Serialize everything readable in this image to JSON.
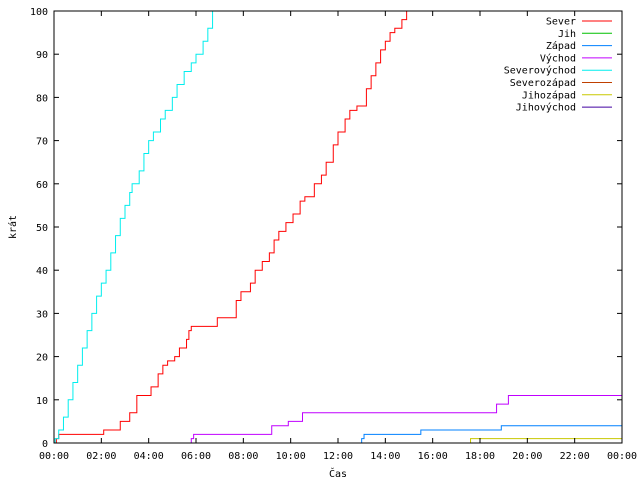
{
  "chart_data": {
    "type": "line",
    "title": "",
    "xlabel": "Čas",
    "ylabel": "krát",
    "x_unit": "hours of day",
    "xlim": [
      0,
      24
    ],
    "ylim": [
      0,
      100
    ],
    "x_ticks": [
      {
        "x": 0,
        "label": "00:00"
      },
      {
        "x": 2,
        "label": "02:00"
      },
      {
        "x": 4,
        "label": "04:00"
      },
      {
        "x": 6,
        "label": "06:00"
      },
      {
        "x": 8,
        "label": "08:00"
      },
      {
        "x": 10,
        "label": "10:00"
      },
      {
        "x": 12,
        "label": "12:00"
      },
      {
        "x": 14,
        "label": "14:00"
      },
      {
        "x": 16,
        "label": "16:00"
      },
      {
        "x": 18,
        "label": "18:00"
      },
      {
        "x": 20,
        "label": "20:00"
      },
      {
        "x": 22,
        "label": "22:00"
      },
      {
        "x": 24,
        "label": "00:00"
      }
    ],
    "y_ticks": [
      {
        "y": 0,
        "label": "0"
      },
      {
        "y": 10,
        "label": "10"
      },
      {
        "y": 20,
        "label": "20"
      },
      {
        "y": 30,
        "label": "30"
      },
      {
        "y": 40,
        "label": "40"
      },
      {
        "y": 50,
        "label": "50"
      },
      {
        "y": 60,
        "label": "60"
      },
      {
        "y": 70,
        "label": "70"
      },
      {
        "y": 80,
        "label": "80"
      },
      {
        "y": 90,
        "label": "90"
      },
      {
        "y": 100,
        "label": "100"
      }
    ],
    "grid": false,
    "legend_position": "top-right",
    "step": true,
    "series": [
      {
        "name": "Sever",
        "color": "#ff0000",
        "points": [
          [
            0.1,
            1
          ],
          [
            0.2,
            2
          ],
          [
            2.1,
            3
          ],
          [
            2.8,
            5
          ],
          [
            3.2,
            7
          ],
          [
            3.5,
            11
          ],
          [
            4.1,
            13
          ],
          [
            4.4,
            16
          ],
          [
            4.6,
            18
          ],
          [
            4.8,
            19
          ],
          [
            5.1,
            20
          ],
          [
            5.3,
            22
          ],
          [
            5.6,
            24
          ],
          [
            5.7,
            26
          ],
          [
            5.8,
            27
          ],
          [
            6.9,
            29
          ],
          [
            7.7,
            33
          ],
          [
            7.9,
            35
          ],
          [
            8.3,
            37
          ],
          [
            8.5,
            40
          ],
          [
            8.8,
            42
          ],
          [
            9.1,
            44
          ],
          [
            9.3,
            47
          ],
          [
            9.5,
            49
          ],
          [
            9.8,
            51
          ],
          [
            10.1,
            53
          ],
          [
            10.4,
            56
          ],
          [
            10.6,
            57
          ],
          [
            11.0,
            60
          ],
          [
            11.3,
            62
          ],
          [
            11.5,
            65
          ],
          [
            11.8,
            69
          ],
          [
            12.0,
            72
          ],
          [
            12.3,
            75
          ],
          [
            12.5,
            77
          ],
          [
            12.8,
            78
          ],
          [
            13.2,
            82
          ],
          [
            13.4,
            85
          ],
          [
            13.6,
            88
          ],
          [
            13.8,
            91
          ],
          [
            14.0,
            93
          ],
          [
            14.2,
            95
          ],
          [
            14.4,
            96
          ],
          [
            14.7,
            98
          ],
          [
            14.9,
            100
          ]
        ]
      },
      {
        "name": "Jih",
        "color": "#00c000",
        "points": []
      },
      {
        "name": "Západ",
        "color": "#0080ff",
        "points": [
          [
            13.0,
            1
          ],
          [
            13.1,
            2
          ],
          [
            15.5,
            3
          ],
          [
            18.9,
            4
          ],
          [
            24,
            4
          ]
        ]
      },
      {
        "name": "Východ",
        "color": "#c000ff",
        "points": [
          [
            5.8,
            1
          ],
          [
            5.9,
            2
          ],
          [
            9.2,
            4
          ],
          [
            9.9,
            5
          ],
          [
            10.5,
            7
          ],
          [
            18.7,
            9
          ],
          [
            19.2,
            11
          ],
          [
            24,
            11
          ]
        ]
      },
      {
        "name": "Severovýchod",
        "color": "#00eeee",
        "points": [
          [
            0.05,
            1
          ],
          [
            0.2,
            3
          ],
          [
            0.4,
            6
          ],
          [
            0.6,
            10
          ],
          [
            0.8,
            14
          ],
          [
            1.0,
            18
          ],
          [
            1.2,
            22
          ],
          [
            1.4,
            26
          ],
          [
            1.6,
            30
          ],
          [
            1.8,
            34
          ],
          [
            2.0,
            37
          ],
          [
            2.2,
            40
          ],
          [
            2.4,
            44
          ],
          [
            2.6,
            48
          ],
          [
            2.8,
            52
          ],
          [
            3.0,
            55
          ],
          [
            3.2,
            58
          ],
          [
            3.3,
            60
          ],
          [
            3.6,
            63
          ],
          [
            3.8,
            67
          ],
          [
            4.0,
            70
          ],
          [
            4.2,
            72
          ],
          [
            4.5,
            75
          ],
          [
            4.7,
            77
          ],
          [
            5.0,
            80
          ],
          [
            5.2,
            83
          ],
          [
            5.5,
            86
          ],
          [
            5.8,
            88
          ],
          [
            6.0,
            90
          ],
          [
            6.3,
            93
          ],
          [
            6.5,
            96
          ],
          [
            6.7,
            100
          ]
        ]
      },
      {
        "name": "Severozápad",
        "color": "#c04000",
        "points": []
      },
      {
        "name": "Jihozápad",
        "color": "#c8c800",
        "points": [
          [
            17.6,
            1
          ],
          [
            24,
            1
          ]
        ]
      },
      {
        "name": "Jihovýchod",
        "color": "#4000a0",
        "points": []
      }
    ]
  }
}
